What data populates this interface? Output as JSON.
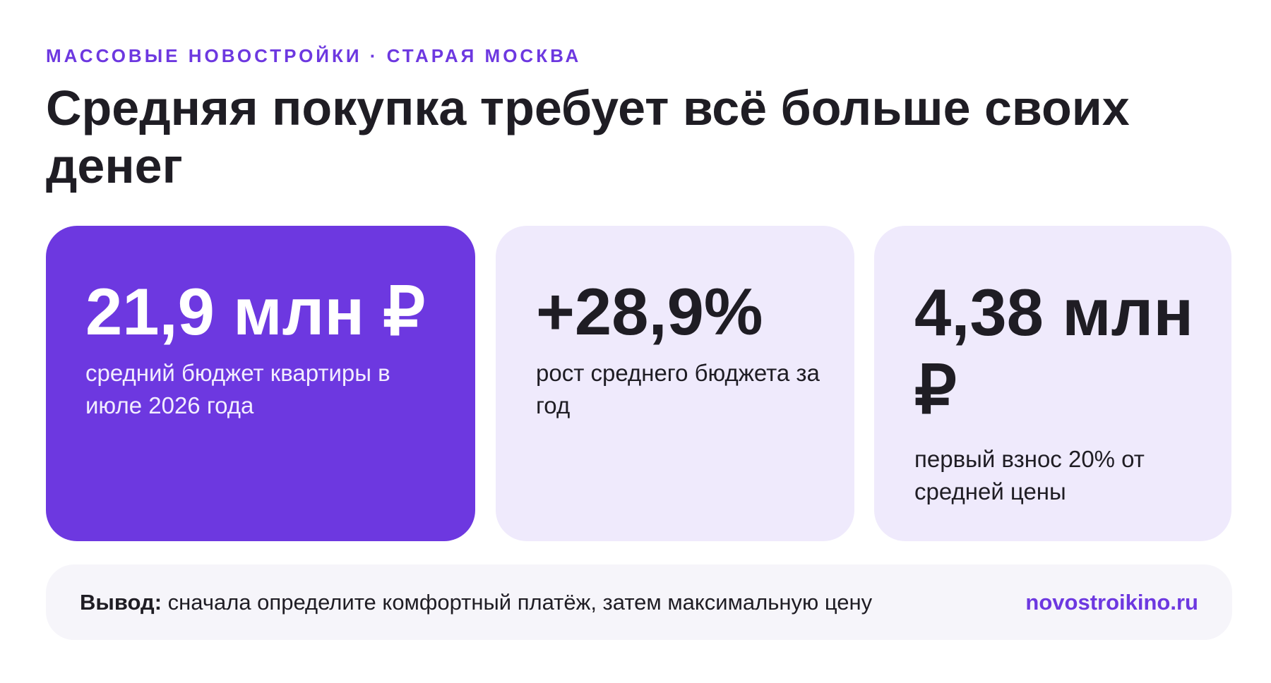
{
  "header": {
    "kicker": "МАССОВЫЕ НОВОСТРОЙКИ · СТАРАЯ МОСКВА",
    "title": "Средняя покупка требует всё больше своих денег"
  },
  "cards": [
    {
      "value": "21,9 млн ₽",
      "caption": "средний бюджет квартиры в июле 2026 года"
    },
    {
      "value": "+28,9%",
      "caption": "рост среднего бюджета за год"
    },
    {
      "value": "4,38 млн ₽",
      "caption": "первый взнос 20% от средней цены"
    }
  ],
  "footer": {
    "label": "Вывод:",
    "text": " сначала определите комфортный платёж, затем максимальную цену",
    "site": "novostroikino.ru"
  },
  "colors": {
    "accent": "#6d38e0",
    "card_light": "#efeafc",
    "footer_bg": "#f6f5fa",
    "text_dark": "#1f1d24"
  }
}
